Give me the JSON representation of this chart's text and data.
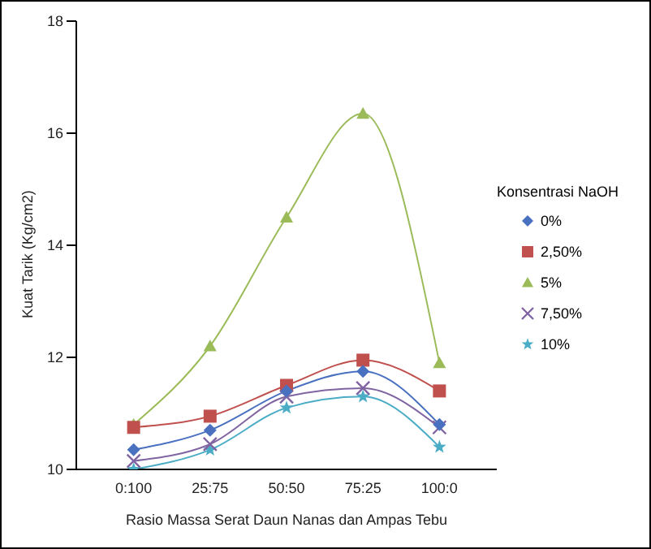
{
  "chart_data": {
    "type": "line",
    "xlabel": "Rasio Massa Serat Daun Nanas dan Ampas Tebu",
    "ylabel": "Kuat Tarik (Kg/cm2)",
    "legend_title": "Konsentrasi NaOH",
    "categories": [
      "0:100",
      "25:75",
      "50:50",
      "75:25",
      "100:0"
    ],
    "ylim": [
      10,
      18
    ],
    "yticks": [
      10,
      12,
      14,
      16,
      18
    ],
    "grid": false,
    "legend": "right",
    "series": [
      {
        "name": "0%",
        "color": "#4a70c0",
        "marker": "diamond",
        "values": [
          10.35,
          10.7,
          11.4,
          11.75,
          10.8
        ]
      },
      {
        "name": "2,50%",
        "color": "#c0504d",
        "marker": "square",
        "values": [
          10.75,
          10.95,
          11.5,
          11.95,
          11.4
        ]
      },
      {
        "name": "5%",
        "color": "#9bbb59",
        "marker": "triangle",
        "values": [
          10.8,
          12.2,
          14.5,
          16.35,
          11.9
        ]
      },
      {
        "name": "7,50%",
        "color": "#8064a2",
        "marker": "cross",
        "values": [
          10.15,
          10.45,
          11.3,
          11.45,
          10.75
        ]
      },
      {
        "name": "10%",
        "color": "#4bacc6",
        "marker": "star",
        "values": [
          10.0,
          10.35,
          11.1,
          11.3,
          10.4
        ]
      }
    ]
  }
}
